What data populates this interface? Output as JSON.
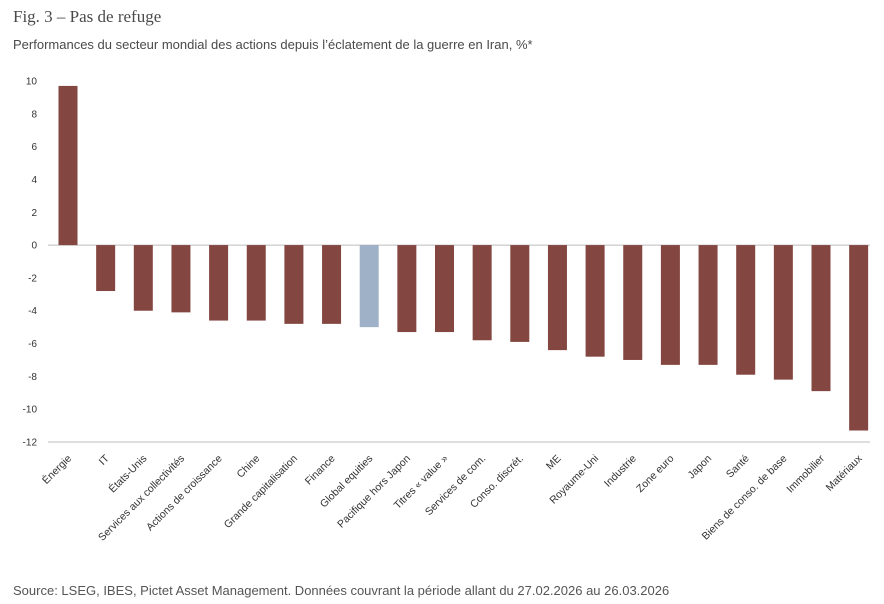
{
  "figure": {
    "title": "Fig. 3 – Pas de refuge",
    "subtitle": "Performances du secteur mondial des actions depuis l’éclatement de la guerre en Iran, %*",
    "source": "Source: LSEG, IBES, Pictet Asset Management. Données couvrant la période allant du 27.02.2026 au 26.03.2026"
  },
  "colors": {
    "bar_default": "#834640",
    "bar_highlight": "#9fb1c6",
    "axis": "#bdbdbd"
  },
  "chart_data": {
    "type": "bar",
    "title": "Performances du secteur mondial des actions depuis l’éclatement de la guerre en Iran, %*",
    "xlabel": "",
    "ylabel": "%",
    "ylim": [
      -12,
      10
    ],
    "yticks": [
      10,
      8,
      6,
      4,
      2,
      0,
      -2,
      -4,
      -6,
      -8,
      -10,
      -12
    ],
    "grid": false,
    "highlight_category": "Global equities",
    "categories": [
      "Énergie",
      "IT",
      "États-Unis",
      "Services aux collectivités",
      "Actions de croissance",
      "Chine",
      "Grande capitalisation",
      "Finance",
      "Global equities",
      "Pacifique hors Japon",
      "Titres « value »",
      "Services de com.",
      "Conso. discrét.",
      "ME",
      "Royaume-Uni",
      "Industrie",
      "Zone euro",
      "Japon",
      "Santé",
      "Biens de conso. de base",
      "Immobilier",
      "Matériaux"
    ],
    "values": [
      9.7,
      -2.8,
      -4.0,
      -4.1,
      -4.6,
      -4.6,
      -4.8,
      -4.8,
      -5.0,
      -5.3,
      -5.3,
      -5.8,
      -5.9,
      -6.4,
      -6.8,
      -7.0,
      -7.3,
      -7.3,
      -7.9,
      -8.2,
      -8.9,
      -11.3
    ]
  }
}
